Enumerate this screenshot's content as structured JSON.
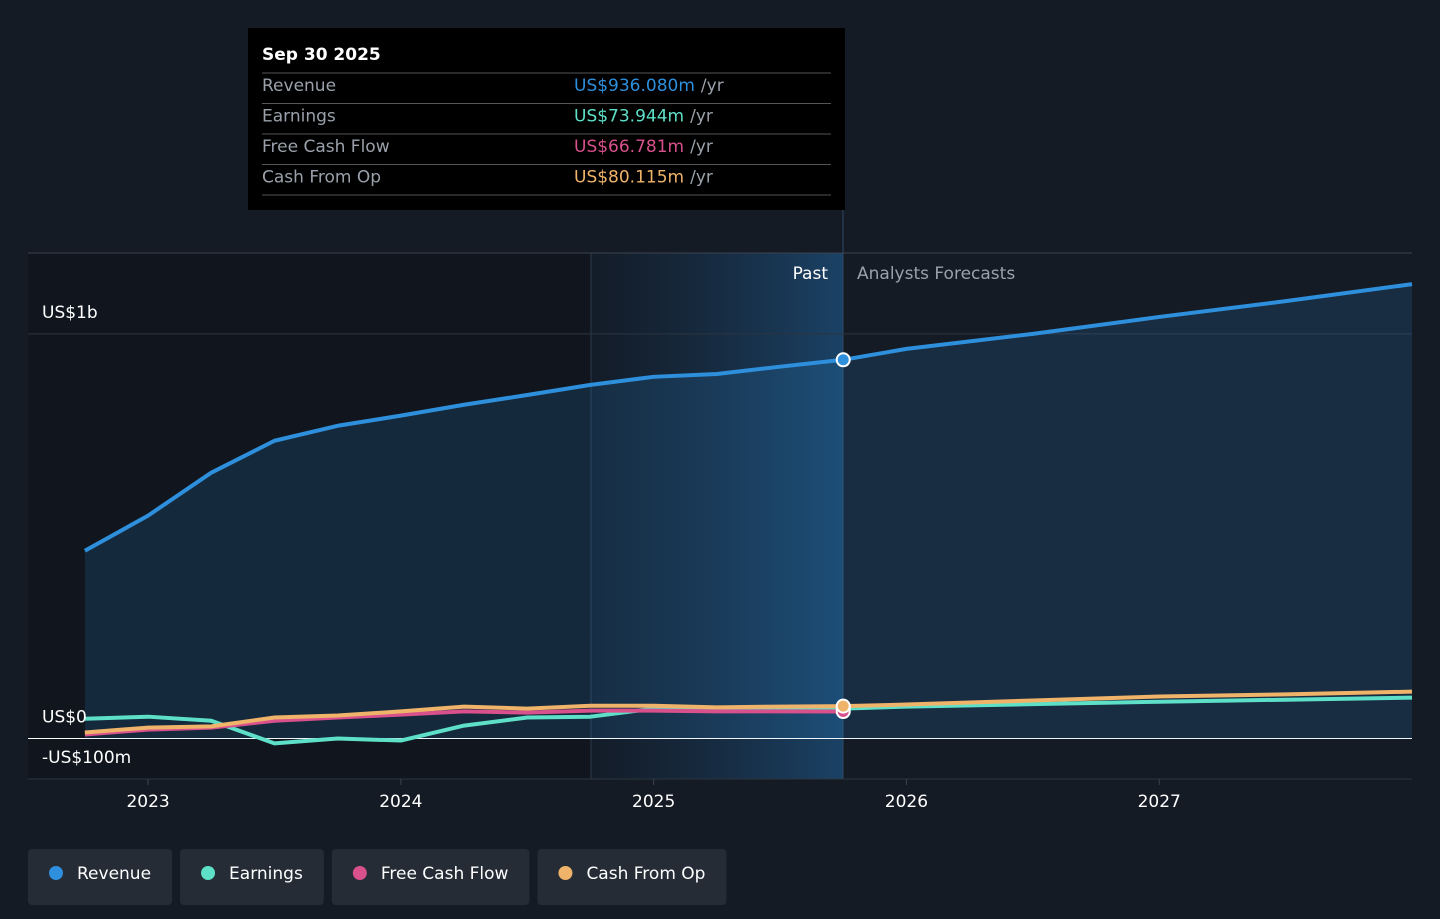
{
  "chart_data": {
    "type": "line",
    "x": [
      2022.75,
      2023.0,
      2023.25,
      2023.5,
      2023.75,
      2024.0,
      2024.25,
      2024.5,
      2024.75,
      2025.0,
      2025.25,
      2025.5,
      2025.75,
      2026.0,
      2026.5,
      2027.0,
      2027.5,
      2028.0
    ],
    "series": [
      {
        "name": "Revenue",
        "color": "#2e8fdc",
        "values": [
          464,
          551,
          657,
          736,
          773,
          798,
          825,
          849,
          874,
          894,
          901,
          919,
          936.08,
          963,
          1000,
          1042,
          1081,
          1123
        ]
      },
      {
        "name": "Earnings",
        "color": "#5ee0c8",
        "values": [
          49,
          54,
          44,
          -12,
          0,
          -5,
          32,
          52,
          54,
          74,
          72,
          73,
          73.944,
          79,
          85,
          91,
          96,
          101
        ]
      },
      {
        "name": "Free Cash Flow",
        "color": "#d8508c",
        "values": [
          10,
          22,
          27,
          44,
          52,
          59,
          67,
          64,
          69,
          69,
          67,
          67,
          66.781,
          null,
          null,
          null,
          null,
          null
        ]
      },
      {
        "name": "Cash From Op",
        "color": "#f0b36a",
        "values": [
          15,
          27,
          30,
          52,
          57,
          67,
          79,
          74,
          81,
          81,
          77,
          79,
          80.115,
          84,
          94,
          104,
          109,
          116
        ]
      }
    ],
    "xlim": [
      2022.525,
      2028.0
    ],
    "xticks": [
      2023,
      2024,
      2025,
      2026,
      2027
    ],
    "ylim": [
      -100,
      1200
    ],
    "yticks": [
      {
        "value": -100,
        "label": "-US$100m"
      },
      {
        "value": 0,
        "label": "US$0"
      },
      {
        "value": 1000,
        "label": "US$1b"
      }
    ],
    "grid": true,
    "past_label": "Past",
    "forecast_label": "Analysts Forecasts",
    "tooltip": {
      "date": "Sep 30 2025",
      "rows": [
        {
          "label": "Revenue",
          "value": "US$936.080m",
          "unit": "/yr"
        },
        {
          "label": "Earnings",
          "value": "US$73.944m",
          "unit": "/yr"
        },
        {
          "label": "Free Cash Flow",
          "value": "US$66.781m",
          "unit": "/yr"
        },
        {
          "label": "Cash From Op",
          "value": "US$80.115m",
          "unit": "/yr"
        }
      ]
    }
  }
}
